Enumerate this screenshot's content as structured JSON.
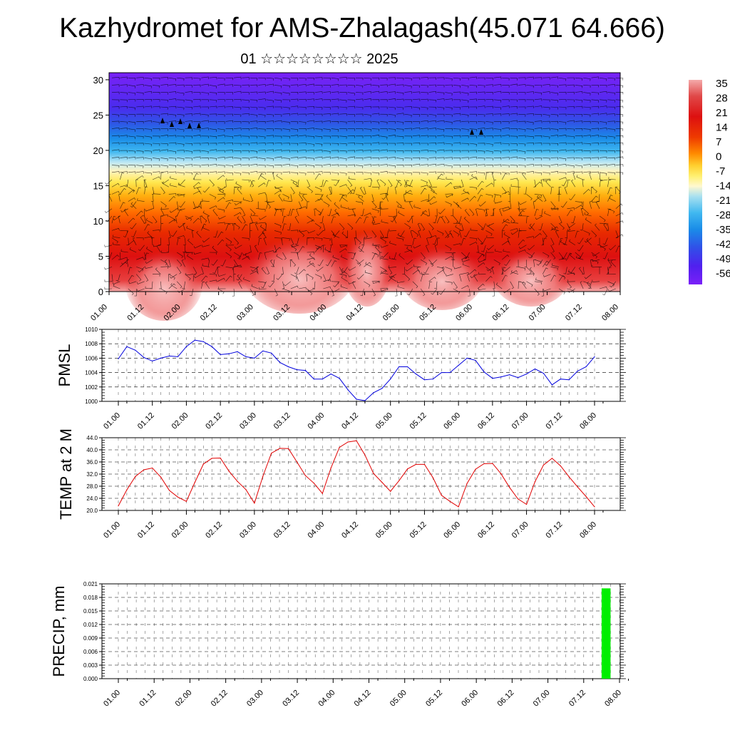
{
  "title": "Kazhydromet for AMS-Zhalagash(45.071 64.666)",
  "subtitle": "01 ☆☆☆☆☆☆☆☆ 2025",
  "time_ticks": [
    "01.00",
    "01.12",
    "02.00",
    "02.12",
    "03.00",
    "03.12",
    "04.00",
    "04.12",
    "05.00",
    "05.12",
    "06.00",
    "06.12",
    "07.00",
    "07.12",
    "08.00"
  ],
  "colorbar": {
    "labels": [
      "35",
      "28",
      "21",
      "14",
      "7",
      "0",
      "-7",
      "-14",
      "-21",
      "-28",
      "-35",
      "-42",
      "-49",
      "-56"
    ],
    "colors": [
      "#f4aaaa",
      "#e05050",
      "#dd1010",
      "#e63000",
      "#ff7000",
      "#ffaa10",
      "#ffee50",
      "#fff6b0",
      "#a8e0f0",
      "#40b8f0",
      "#1a8ce8",
      "#3050e8",
      "#5020ee",
      "#7a20f8"
    ]
  },
  "chart_data": [
    {
      "type": "heatmap",
      "title": "",
      "x": [
        "01.00",
        "01.12",
        "02.00",
        "02.12",
        "03.00",
        "03.12",
        "04.00",
        "04.12",
        "05.00",
        "05.12",
        "06.00",
        "06.12",
        "07.00",
        "07.12",
        "08.00"
      ],
      "y_ticks": [
        0,
        5,
        10,
        15,
        20,
        25,
        30
      ],
      "ylim": [
        0,
        31
      ],
      "variable": "temperature with wind barbs",
      "value_range": [
        -56,
        35
      ]
    },
    {
      "type": "line",
      "ylabel": "PMSL",
      "ylim": [
        1000,
        1010
      ],
      "y_ticks": [
        "1000",
        "1002",
        "1004",
        "1006",
        "1008",
        "1010"
      ],
      "color": "#0000dd",
      "x": [
        0,
        3,
        6,
        9,
        12,
        15,
        18,
        21,
        24,
        27,
        30,
        33,
        36,
        39,
        42,
        45,
        48,
        51,
        54,
        57,
        60,
        63,
        66,
        69,
        72,
        75,
        78,
        81,
        84,
        87,
        90,
        93,
        96,
        99,
        102,
        105,
        108,
        111,
        114,
        117,
        120,
        123,
        126,
        129,
        132,
        135,
        138,
        141,
        144,
        147,
        150,
        153,
        156,
        159,
        162,
        165,
        168
      ],
      "values": [
        1005.9,
        1007.6,
        1007.1,
        1006.1,
        1005.6,
        1006.0,
        1006.3,
        1006.2,
        1007.6,
        1008.5,
        1008.3,
        1007.6,
        1006.5,
        1006.6,
        1006.9,
        1006.2,
        1006.0,
        1007.0,
        1006.7,
        1005.4,
        1004.8,
        1004.4,
        1004.3,
        1003.1,
        1003.1,
        1003.8,
        1003.2,
        1001.6,
        1000.3,
        1000.1,
        1001.2,
        1001.8,
        1003.1,
        1004.8,
        1004.8,
        1003.8,
        1003.0,
        1003.1,
        1004.0,
        1004.0,
        1005.0,
        1006.0,
        1005.7,
        1004.1,
        1003.2,
        1003.4,
        1003.7,
        1003.3,
        1003.8,
        1004.5,
        1003.9,
        1002.3,
        1003.1,
        1003.0,
        1004.2,
        1004.8,
        1006.2
      ]
    },
    {
      "type": "line",
      "ylabel": "TEMP at 2 M",
      "ylim": [
        20,
        44
      ],
      "y_ticks": [
        "20.0",
        "24.0",
        "28.0",
        "32.0",
        "36.0",
        "40.0",
        "44.0"
      ],
      "color": "#e00000",
      "x": [
        0,
        3,
        6,
        9,
        12,
        15,
        18,
        21,
        24,
        27,
        30,
        33,
        36,
        39,
        42,
        45,
        48,
        51,
        54,
        57,
        60,
        63,
        66,
        69,
        72,
        75,
        78,
        81,
        84,
        87,
        90,
        93,
        96,
        99,
        102,
        105,
        108,
        111,
        114,
        117,
        120,
        123,
        126,
        129,
        132,
        135,
        138,
        141,
        144,
        147,
        150,
        153,
        156,
        159,
        162,
        165,
        168
      ],
      "values": [
        21.5,
        26.8,
        31.2,
        33.4,
        34.0,
        31.0,
        26.6,
        24.4,
        23.0,
        29.3,
        35.3,
        37.2,
        37.3,
        33.0,
        29.6,
        26.9,
        22.4,
        31.3,
        38.9,
        40.5,
        40.4,
        36.0,
        31.5,
        29.0,
        25.6,
        34.0,
        40.8,
        42.6,
        43.0,
        38.3,
        32.2,
        29.3,
        26.3,
        29.8,
        33.7,
        35.2,
        35.2,
        30.8,
        25.0,
        23.0,
        21.2,
        28.9,
        33.6,
        35.4,
        35.5,
        32.1,
        27.6,
        23.8,
        22.0,
        29.5,
        35.0,
        37.2,
        34.7,
        31.1,
        27.8,
        24.6,
        21.2
      ]
    },
    {
      "type": "bar",
      "ylabel": "PRECIP, mm",
      "ylim": [
        0,
        0.021
      ],
      "y_ticks": [
        "0.000",
        "0.003",
        "0.006",
        "0.009",
        "0.012",
        "0.015",
        "0.018",
        "0.021"
      ],
      "bar_color": "#00ee00",
      "x": [
        0,
        3,
        6,
        9,
        12,
        15,
        18,
        21,
        24,
        27,
        30,
        33,
        36,
        39,
        42,
        45,
        48,
        51,
        54,
        57,
        60,
        63,
        66,
        69,
        72,
        75,
        78,
        81,
        84,
        87,
        90,
        93,
        96,
        99,
        102,
        105,
        108,
        111,
        114,
        117,
        120,
        123,
        126,
        129,
        132,
        135,
        138,
        141,
        144,
        147,
        150,
        153,
        156,
        159,
        162,
        165
      ],
      "values": [
        0,
        0,
        0,
        0,
        0,
        0,
        0,
        0,
        0,
        0,
        0,
        0,
        0,
        0,
        0,
        0,
        0,
        0,
        0,
        0,
        0,
        0,
        0,
        0,
        0,
        0,
        0,
        0,
        0,
        0,
        0,
        0,
        0,
        0,
        0,
        0,
        0,
        0,
        0,
        0,
        0,
        0,
        0,
        0,
        0,
        0,
        0,
        0,
        0,
        0,
        0,
        0,
        0,
        0,
        0.02,
        0
      ]
    }
  ]
}
